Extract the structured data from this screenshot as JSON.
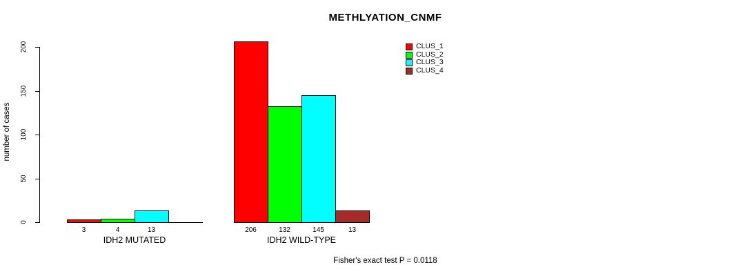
{
  "chart_data": {
    "type": "bar",
    "title": "METHLYATION_CNMF",
    "ylabel": "number of cases",
    "ylim": [
      0,
      200
    ],
    "yticks": [
      0,
      50,
      100,
      150,
      200
    ],
    "categories": [
      "IDH2 MUTATED",
      "IDH2 WILD-TYPE"
    ],
    "series": [
      {
        "name": "CLUS_1",
        "color": "#ff0000",
        "values": [
          3,
          206
        ]
      },
      {
        "name": "CLUS_2",
        "color": "#00ff00",
        "values": [
          4,
          132
        ]
      },
      {
        "name": "CLUS_3",
        "color": "#00ffff",
        "values": [
          13,
          145
        ]
      },
      {
        "name": "CLUS_4",
        "color": "#a52a2a",
        "values": [
          0,
          13
        ]
      }
    ],
    "legend_position": "top-right",
    "grid": false,
    "bar_value_labels_shown": true,
    "footnote": "Fisher's exact test P = 0.0118"
  }
}
